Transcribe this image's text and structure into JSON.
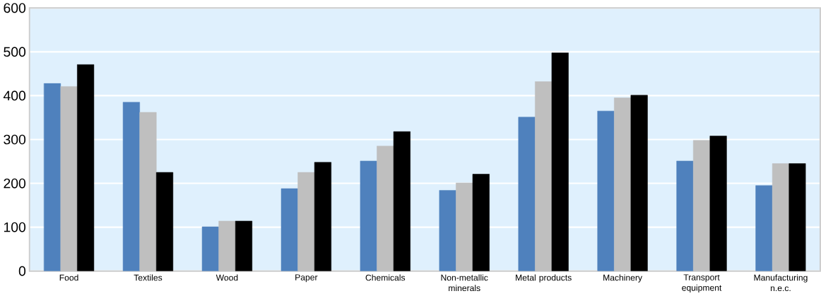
{
  "chart_data": {
    "type": "bar",
    "categories": [
      "Food",
      "Textiles",
      "Wood",
      "Paper",
      "Chemicals",
      "Non-metallic minerals",
      "Metal products",
      "Machinery",
      "Transport equipment",
      "Manufacturing n.e.c."
    ],
    "series": [
      {
        "color": "#4f81bd",
        "values": [
          428,
          385,
          101,
          188,
          251,
          184,
          351,
          365,
          251,
          195
        ]
      },
      {
        "color": "#bfbfbf",
        "values": [
          421,
          362,
          114,
          225,
          285,
          201,
          432,
          395,
          298,
          245
        ]
      },
      {
        "color": "#000000",
        "values": [
          471,
          225,
          114,
          248,
          318,
          221,
          498,
          401,
          308,
          245
        ]
      }
    ],
    "ylim": [
      0,
      600
    ],
    "yticks": [
      0,
      100,
      200,
      300,
      400,
      500,
      600
    ],
    "grid": "y"
  }
}
